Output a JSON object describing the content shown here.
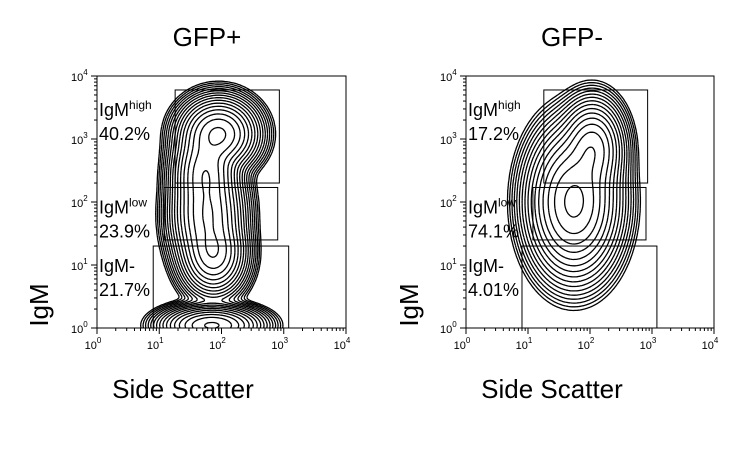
{
  "chart_data": [
    {
      "type": "contour",
      "title": "GFP+",
      "xlabel": "Side Scatter",
      "ylabel": "IgM",
      "x_scale": "log",
      "y_scale": "log",
      "xlim": [
        1,
        10000
      ],
      "ylim": [
        1,
        10000
      ],
      "x_ticks": [
        1,
        10,
        100,
        1000,
        10000
      ],
      "y_ticks": [
        1,
        10,
        100,
        1000,
        10000
      ],
      "tick_base": "10",
      "tick_exponents": [
        "0",
        "1",
        "2",
        "3",
        "4"
      ],
      "gates": [
        {
          "name": "IgM",
          "sup": "high",
          "percent": "40.2%",
          "x_range": [
            18,
            850
          ],
          "y_range": [
            200,
            6000
          ]
        },
        {
          "name": "IgM",
          "sup": "low",
          "percent": "23.9%",
          "x_range": [
            12,
            800
          ],
          "y_range": [
            25,
            170
          ]
        },
        {
          "name": "IgM-",
          "sup": "",
          "percent": "21.7%",
          "x_range": [
            8,
            1200
          ],
          "y_range": [
            1,
            20
          ]
        }
      ],
      "populations": [
        {
          "x": 90,
          "y": 1200,
          "sx": 0.24,
          "sy": 0.22,
          "w": 1.0
        },
        {
          "x": 55,
          "y": 300,
          "sx": 0.2,
          "sy": 0.3,
          "w": 0.8
        },
        {
          "x": 60,
          "y": 60,
          "sx": 0.22,
          "sy": 0.35,
          "w": 0.9
        },
        {
          "x": 75,
          "y": 15,
          "sx": 0.2,
          "sy": 0.25,
          "w": 0.8
        },
        {
          "x": 70,
          "y": 1.1,
          "sx": 0.3,
          "sy": 0.12,
          "w": 1.0
        }
      ]
    },
    {
      "type": "contour",
      "title": "GFP-",
      "xlabel": "Side Scatter",
      "ylabel": "IgM",
      "x_scale": "log",
      "y_scale": "log",
      "xlim": [
        1,
        10000
      ],
      "ylim": [
        1,
        10000
      ],
      "x_ticks": [
        1,
        10,
        100,
        1000,
        10000
      ],
      "y_ticks": [
        1,
        10,
        100,
        1000,
        10000
      ],
      "tick_base": "10",
      "tick_exponents": [
        "0",
        "1",
        "2",
        "3",
        "4"
      ],
      "gates": [
        {
          "name": "IgM",
          "sup": "high",
          "percent": "17.2%",
          "x_range": [
            18,
            850
          ],
          "y_range": [
            200,
            6000
          ]
        },
        {
          "name": "IgM",
          "sup": "low",
          "percent": "74.1%",
          "x_range": [
            12,
            800
          ],
          "y_range": [
            25,
            170
          ]
        },
        {
          "name": "IgM-",
          "sup": "",
          "percent": "4.01%",
          "x_range": [
            8,
            1200
          ],
          "y_range": [
            1,
            20
          ]
        }
      ],
      "populations": [
        {
          "x": 55,
          "y": 100,
          "sx": 0.28,
          "sy": 0.45,
          "w": 1.0
        },
        {
          "x": 110,
          "y": 700,
          "sx": 0.2,
          "sy": 0.3,
          "w": 0.45
        }
      ]
    }
  ]
}
